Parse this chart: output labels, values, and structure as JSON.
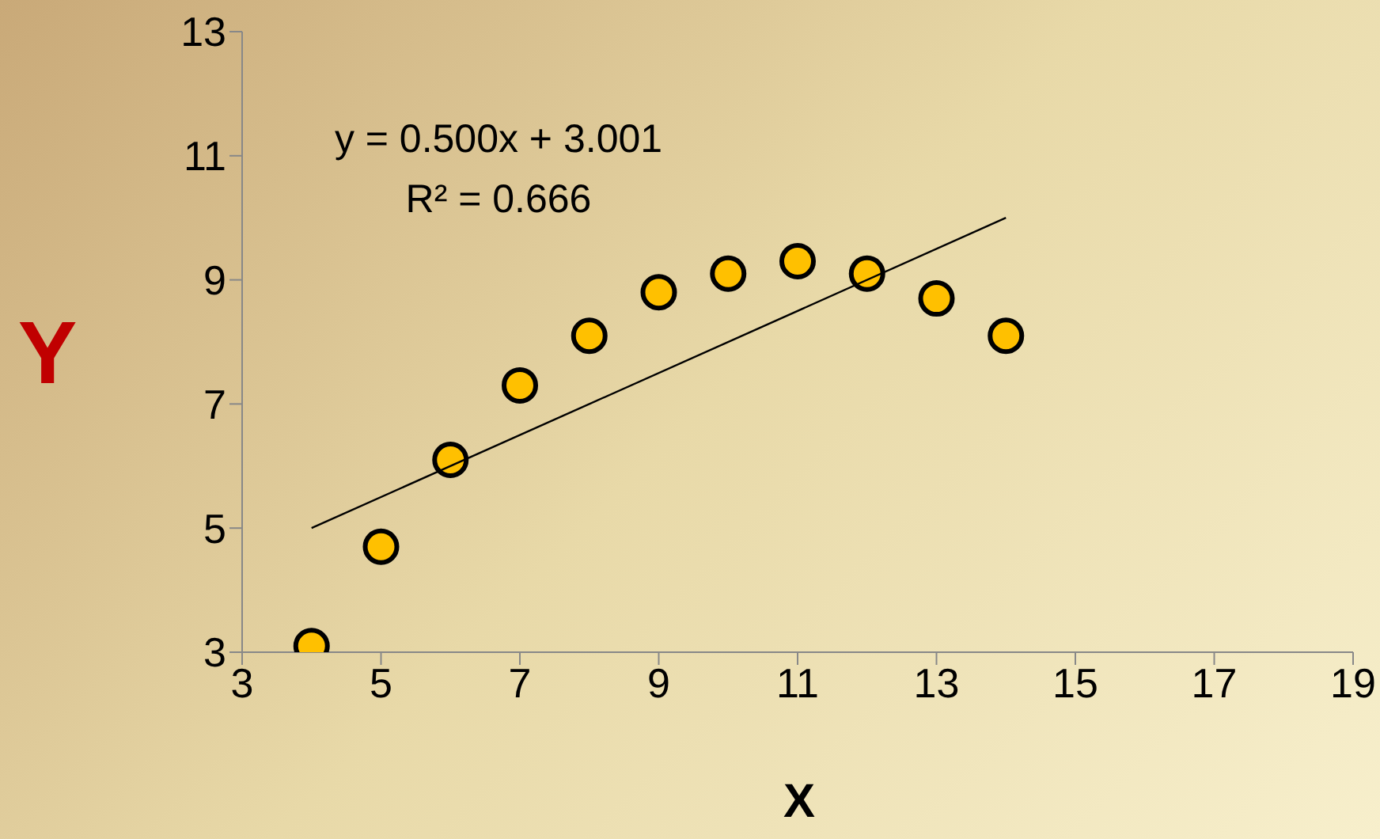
{
  "chart_data": {
    "type": "scatter",
    "xlabel": "X",
    "ylabel": "Y",
    "xlim": [
      3,
      19
    ],
    "xticks": [
      3,
      5,
      7,
      9,
      11,
      13,
      15,
      17,
      19
    ],
    "ylim": [
      3,
      13
    ],
    "yticks": [
      3,
      5,
      7,
      9,
      11,
      13
    ],
    "marker": "circle",
    "annotations": [
      "y = 0.500x + 3.001",
      "R² = 0.666"
    ],
    "series": [
      {
        "color": "#ffc000",
        "x": [
          4,
          5,
          6,
          7,
          8,
          9,
          10,
          11,
          12,
          13,
          14
        ],
        "values": [
          3.1,
          4.7,
          6.1,
          7.3,
          8.1,
          8.8,
          9.1,
          9.3,
          9.1,
          8.7,
          8.1
        ]
      },
      {
        "type": "line",
        "color": "#000000",
        "marker": "none",
        "x": [
          4,
          14
        ],
        "values": [
          5.0,
          10.0
        ]
      }
    ]
  }
}
